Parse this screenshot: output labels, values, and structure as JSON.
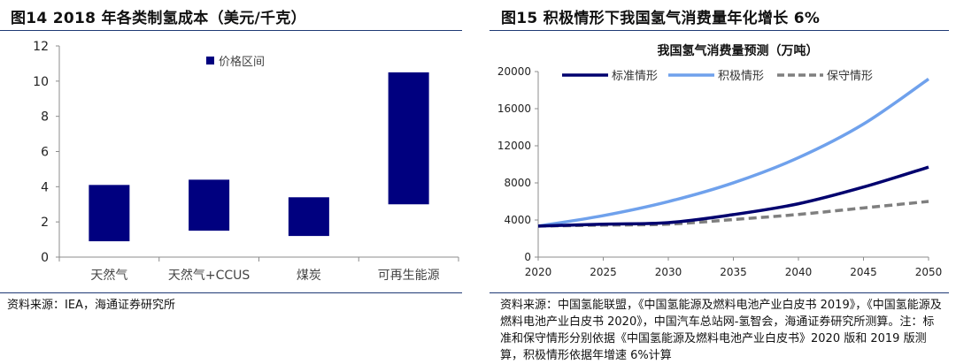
{
  "left": {
    "title": "图14 2018 年各类制氢成本（美元/千克）",
    "source": "资料来源：IEA，海通证券研究所"
  },
  "right": {
    "title": "图15 积极情形下我国氢气消费量年化增长 6%",
    "source": "资料来源：中国氢能联盟，《中国氢能源及燃料电池产业白皮书 2019》，《中国氢能源及燃料电池产业白皮书 2020》，中国汽车总站网-氢智会，海通证券研究所测算。注：标准和保守情形分别依据《中国氢能源及燃料电池产业白皮书》2020 版和 2019 版测算，积极情形依据年增速 6%计算"
  },
  "chart_data": [
    {
      "type": "bar",
      "subtype": "floating-range",
      "categories": [
        "天然气",
        "天然气+CCUS",
        "煤炭",
        "可再生能源"
      ],
      "series": [
        {
          "name": "价格区间",
          "low": [
            0.9,
            1.5,
            1.2,
            3.0
          ],
          "high": [
            4.1,
            4.4,
            3.4,
            10.5
          ],
          "color": "#00007f"
        }
      ],
      "ylim": [
        0,
        12
      ],
      "yticks": [
        "0",
        "2",
        "4",
        "6",
        "8",
        "10",
        "12"
      ],
      "legend": "top-center",
      "grid": false
    },
    {
      "type": "line",
      "title": "我国氢气消费量预测（万吨）",
      "x": [
        2020,
        2025,
        2030,
        2035,
        2040,
        2045,
        2050
      ],
      "xticks": [
        "2020",
        "2025",
        "2030",
        "2035",
        "2040",
        "2045",
        "2050"
      ],
      "yticks": [
        "0",
        "4000",
        "8000",
        "12000",
        "16000",
        "20000"
      ],
      "xlim": [
        2020,
        2050
      ],
      "ylim": [
        0,
        20000
      ],
      "grid": false,
      "legend": "top",
      "series": [
        {
          "name": "标准情形",
          "color": "#00006e",
          "style": "solid",
          "values": [
            3342,
            3550,
            3715,
            4580,
            5750,
            7550,
            9700
          ]
        },
        {
          "name": "积极情形",
          "color": "#6fa1ec",
          "style": "solid",
          "values": [
            3342,
            4472,
            5985,
            8009,
            10718,
            14343,
            19194
          ]
        },
        {
          "name": "保守情形",
          "color": "#7f7f7f",
          "style": "dashed",
          "values": [
            3342,
            3450,
            3550,
            4050,
            4600,
            5300,
            6000
          ]
        }
      ]
    }
  ]
}
